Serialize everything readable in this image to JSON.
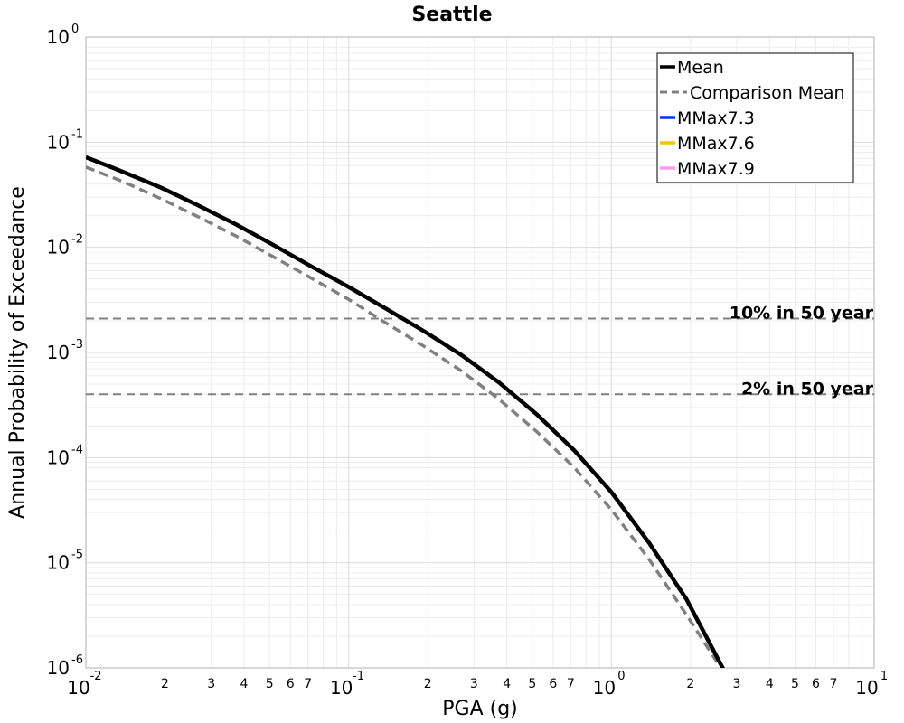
{
  "chart_data": {
    "type": "line",
    "title": "Seattle",
    "xlabel": "PGA (g)",
    "ylabel": "Annual Probability of Exceedance",
    "x_scale": "log",
    "y_scale": "log",
    "xlim": [
      0.01,
      10
    ],
    "ylim": [
      1e-06,
      1
    ],
    "grid": true,
    "legend_position": "top-right",
    "x_major_ticks": [
      {
        "value": 0.01,
        "base": "10",
        "exp": "-2"
      },
      {
        "value": 0.1,
        "base": "10",
        "exp": "-1"
      },
      {
        "value": 1,
        "base": "10",
        "exp": "0"
      },
      {
        "value": 10,
        "base": "10",
        "exp": "1"
      }
    ],
    "x_minor_labels": [
      "2",
      "3",
      "4",
      "5",
      "6",
      "7"
    ],
    "y_major_ticks": [
      {
        "value": 1,
        "base": "10",
        "exp": "0"
      },
      {
        "value": 0.1,
        "base": "10",
        "exp": "-1"
      },
      {
        "value": 0.01,
        "base": "10",
        "exp": "-2"
      },
      {
        "value": 0.001,
        "base": "10",
        "exp": "-3"
      },
      {
        "value": 0.0001,
        "base": "10",
        "exp": "-4"
      },
      {
        "value": 1e-05,
        "base": "10",
        "exp": "-5"
      },
      {
        "value": 1e-06,
        "base": "10",
        "exp": "-6"
      }
    ],
    "series": [
      {
        "name": "Mean",
        "color": "#000000",
        "style": "solid",
        "x": [
          0.01,
          0.0139,
          0.0193,
          0.0268,
          0.0373,
          0.0518,
          0.072,
          0.1,
          0.139,
          0.193,
          0.268,
          0.373,
          0.518,
          0.72,
          1.0,
          1.39,
          1.93,
          2.68
        ],
        "y": [
          0.072,
          0.052,
          0.037,
          0.025,
          0.0165,
          0.0105,
          0.0066,
          0.0042,
          0.0026,
          0.0016,
          0.00095,
          0.00052,
          0.00026,
          0.000118,
          4.7e-05,
          1.55e-05,
          4.5e-06,
          9.5e-07
        ]
      },
      {
        "name": "Comparison Mean",
        "color": "#808080",
        "style": "dashed",
        "x": [
          0.01,
          0.0139,
          0.0193,
          0.0268,
          0.0373,
          0.0518,
          0.072,
          0.1,
          0.139,
          0.193,
          0.268,
          0.373,
          0.518,
          0.72,
          1.0,
          1.39,
          1.93,
          2.68
        ],
        "y": [
          0.058,
          0.042,
          0.029,
          0.0195,
          0.0128,
          0.0081,
          0.0051,
          0.0032,
          0.0019,
          0.00115,
          0.00067,
          0.00036,
          0.000178,
          8.1e-05,
          3.2e-05,
          1.08e-05,
          3.2e-06,
          9e-07
        ]
      },
      {
        "name": "MMax7.3",
        "color": "#0033ff",
        "style": "solid",
        "x": [],
        "y": []
      },
      {
        "name": "MMax7.6",
        "color": "#f2c511",
        "style": "solid",
        "x": [],
        "y": []
      },
      {
        "name": "MMax7.9",
        "color": "#ff99ee",
        "style": "solid",
        "x": [],
        "y": []
      }
    ],
    "reference_lines": [
      {
        "label": "10% in 50 year",
        "y": 0.0021,
        "color": "#808080",
        "style": "dashed"
      },
      {
        "label": "2% in 50 year",
        "y": 0.0004,
        "color": "#808080",
        "style": "dashed"
      }
    ]
  }
}
